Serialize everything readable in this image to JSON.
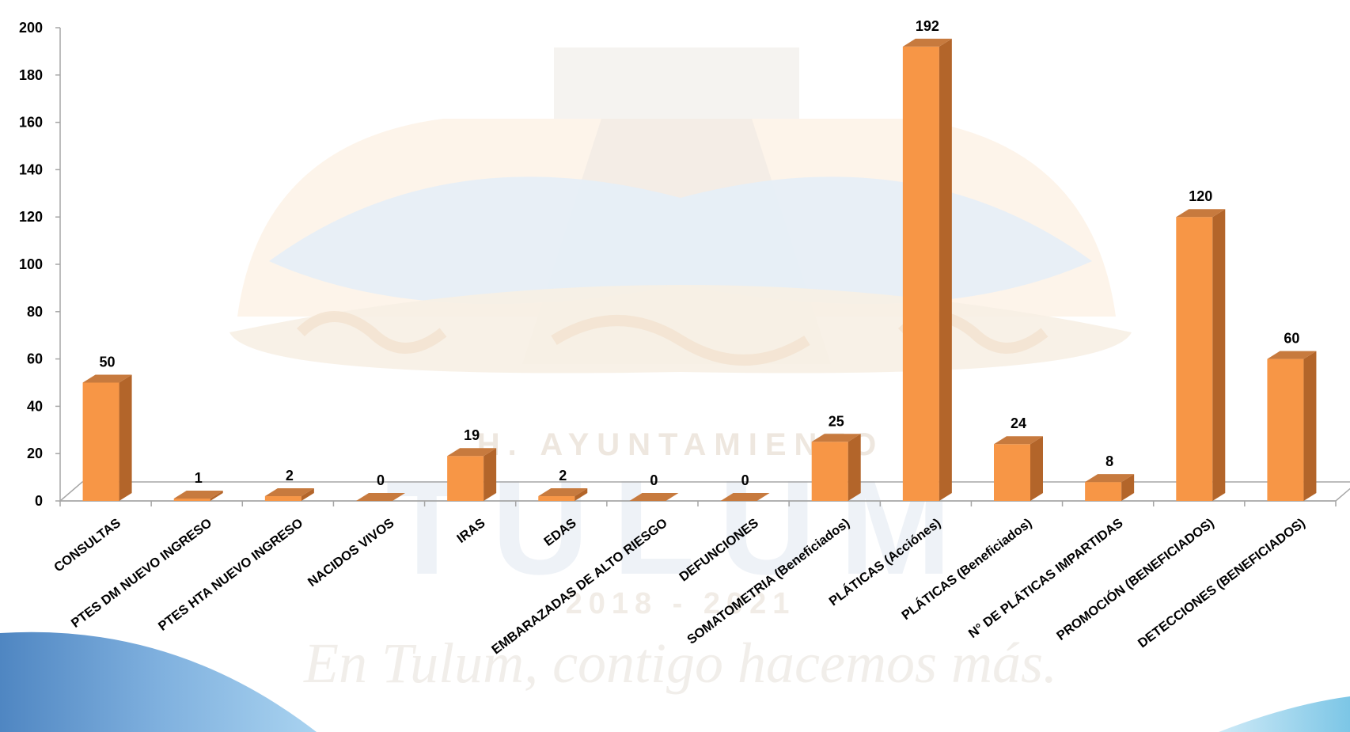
{
  "watermark": {
    "org": "H. AYUNTAMIENTO",
    "town": "TULUM",
    "period": "2018 - 2021",
    "slogan": "En Tulum, contigo hacemos más."
  },
  "colors": {
    "bar_front": "#F79646",
    "bar_side": "#B3652A",
    "bar_top": "#C77A3E",
    "axis": "#A6A6A6",
    "wave": "#5B8FC7"
  },
  "chart_data": {
    "type": "bar",
    "categories": [
      "CONSULTAS",
      "PTES DM NUEVO INGRESO",
      "PTES HTA NUEVO INGRESO",
      "NACIDOS VIVOS",
      "IRAS",
      "EDAS",
      "EMBARAZADAS DE ALTO RIESGO",
      "DEFUNCIONES",
      "SOMATOMETRIA (Beneficiados)",
      "PLÁTICAS (Acciónes)",
      "PLÁTICAS (Beneficiados)",
      "N° DE PLÁTICAS IMPARTIDAS",
      "PROMOCIÓN (BENEFICIADOS)",
      "DETECCIONES (BENEFICIADOS)"
    ],
    "values": [
      50,
      1,
      2,
      0,
      19,
      2,
      0,
      0,
      25,
      192,
      24,
      8,
      120,
      60
    ],
    "data_labels": [
      "50",
      "1",
      "2",
      "0",
      "19",
      "2",
      "0",
      "0",
      "25",
      "192",
      "24",
      "8",
      "120",
      "60"
    ],
    "y_ticks": [
      "0",
      "20",
      "40",
      "60",
      "80",
      "100",
      "120",
      "140",
      "160",
      "180",
      "200"
    ],
    "ylim": [
      0,
      200
    ],
    "title": "",
    "xlabel": "",
    "ylabel": "",
    "grid": false,
    "legend": "none",
    "style": "3d-column"
  }
}
